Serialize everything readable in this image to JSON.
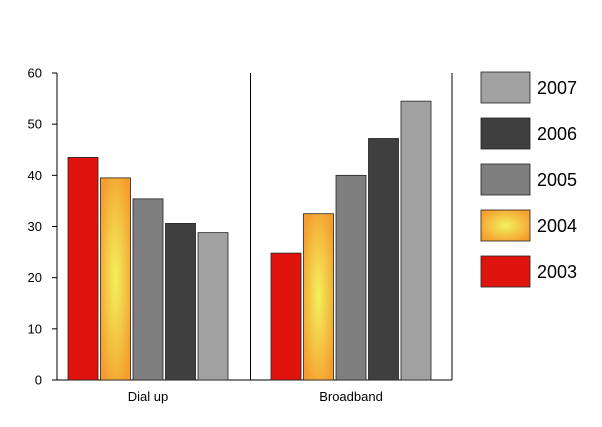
{
  "chart_data": {
    "type": "bar",
    "categories": [
      "Dial up",
      "Broadband"
    ],
    "series": [
      {
        "name": "2003",
        "values": [
          43.5,
          24.8
        ],
        "color": "#e0140e",
        "fill": "solid"
      },
      {
        "name": "2004",
        "values": [
          39.5,
          32.5
        ],
        "color": "#f59d2f",
        "fill": "radial-gradient",
        "highlight": "#f2f25c"
      },
      {
        "name": "2005",
        "values": [
          35.4,
          40.0
        ],
        "color": "#7f7f7f",
        "fill": "solid"
      },
      {
        "name": "2006",
        "values": [
          30.6,
          47.2
        ],
        "color": "#3f3f3f",
        "fill": "solid"
      },
      {
        "name": "2007",
        "values": [
          28.8,
          54.5
        ],
        "color": "#a2a2a2",
        "fill": "solid"
      }
    ],
    "yticks": [
      "0",
      "10",
      "20",
      "30",
      "40",
      "50",
      "60"
    ],
    "ylim": [
      0,
      60
    ],
    "title": "",
    "xlabel": "",
    "ylabel": "",
    "legend_position": "right",
    "legend_order": [
      "2007",
      "2006",
      "2005",
      "2004",
      "2003"
    ],
    "grid": false,
    "category_divider": true
  }
}
